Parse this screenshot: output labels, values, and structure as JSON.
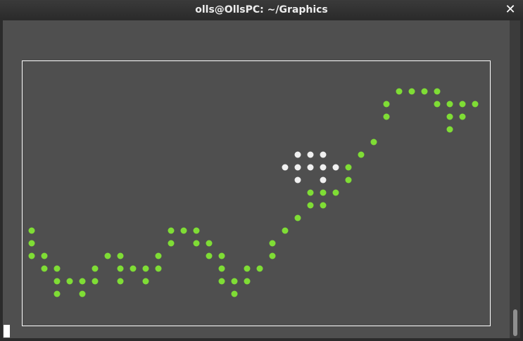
{
  "window": {
    "title": "olls@OllsPC: ~/Graphics",
    "close_icon": "close-icon"
  },
  "colors": {
    "background": "#4f4f4f",
    "green": "#7fdd35",
    "white": "#f0f0f0",
    "frame": "#ffffff"
  },
  "green_dots": [
    [
      0,
      0
    ],
    [
      0,
      1
    ],
    [
      0,
      2
    ],
    [
      1,
      2
    ],
    [
      1,
      3
    ],
    [
      2,
      3
    ],
    [
      2,
      4
    ],
    [
      2,
      5
    ],
    [
      3,
      4
    ],
    [
      4,
      4
    ],
    [
      4,
      5
    ],
    [
      5,
      3
    ],
    [
      5,
      4
    ],
    [
      6,
      2
    ],
    [
      7,
      2
    ],
    [
      7,
      3
    ],
    [
      7,
      4
    ],
    [
      8,
      3
    ],
    [
      9,
      3
    ],
    [
      9,
      4
    ],
    [
      10,
      2
    ],
    [
      10,
      3
    ],
    [
      11,
      0
    ],
    [
      11,
      1
    ],
    [
      12,
      0
    ],
    [
      13,
      0
    ],
    [
      13,
      1
    ],
    [
      14,
      1
    ],
    [
      14,
      2
    ],
    [
      15,
      2
    ],
    [
      15,
      3
    ],
    [
      15,
      4
    ],
    [
      16,
      4
    ],
    [
      16,
      5
    ],
    [
      17,
      3
    ],
    [
      17,
      4
    ],
    [
      18,
      3
    ],
    [
      19,
      1
    ],
    [
      19,
      2
    ],
    [
      20,
      0
    ],
    [
      21,
      -1
    ],
    [
      22,
      -3
    ],
    [
      22,
      -2
    ],
    [
      23,
      -3
    ],
    [
      23,
      -2
    ],
    [
      24,
      -3
    ],
    [
      25,
      -5
    ],
    [
      25,
      -4
    ],
    [
      26,
      -6
    ],
    [
      27,
      -7
    ],
    [
      28,
      -9
    ],
    [
      28,
      -10
    ],
    [
      29,
      -11
    ],
    [
      30,
      -11
    ],
    [
      31,
      -11
    ],
    [
      32,
      -11
    ],
    [
      32,
      -10
    ],
    [
      33,
      -10
    ],
    [
      33,
      -9
    ],
    [
      33,
      -8
    ],
    [
      34,
      -10
    ],
    [
      34,
      -9
    ],
    [
      35,
      -10
    ]
  ],
  "white_dots": [
    [
      21,
      -6
    ],
    [
      21,
      -5
    ],
    [
      21,
      -4
    ],
    [
      20,
      -5
    ],
    [
      22,
      -6
    ],
    [
      22,
      -5
    ],
    [
      23,
      -6
    ],
    [
      23,
      -5
    ],
    [
      23,
      -4
    ],
    [
      24,
      -5
    ]
  ],
  "cursor_visible": true
}
